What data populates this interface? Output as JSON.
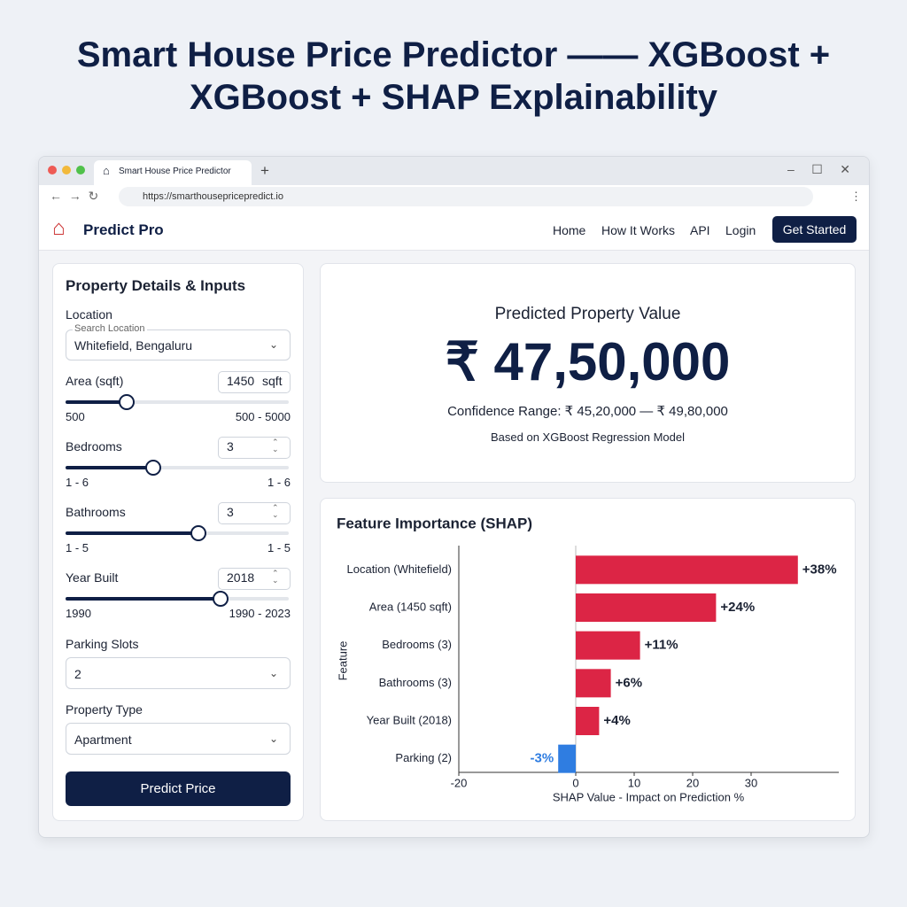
{
  "page": {
    "title_lines": [
      "Smart House Price Predictor —— XGBoost +",
      "XGBoost +  SHAP Explainability"
    ]
  },
  "browser": {
    "tab_title": "Smart House Price Predictor",
    "url": "https://smarthousepricepredict.io"
  },
  "nav": {
    "brand": "Predict Pro",
    "links": [
      "Home",
      "How It Works",
      "API",
      "Login"
    ],
    "cta": "Get Started"
  },
  "form": {
    "heading": "Property Details & Inputs",
    "location": {
      "label": "Location",
      "placeholder": "Search Location",
      "value": "Whitefield, Bengaluru"
    },
    "sliders": [
      {
        "label": "Area (sqft)",
        "value": "1450",
        "unit": "sqft",
        "min_label": "500",
        "range_label": "500 - 5000"
      },
      {
        "label": "Bedrooms",
        "value": "3",
        "min_label": "1 - 6",
        "range_label": "1 - 6"
      },
      {
        "label": "Bathrooms",
        "value": "3",
        "min_label": "1 - 5",
        "range_label": "1 - 5"
      },
      {
        "label": "Year Built",
        "value": "2018",
        "min_label": "1990",
        "range_label": "1990 - 2023"
      }
    ],
    "parking": {
      "label": "Parking Slots",
      "value": "2"
    },
    "property_type": {
      "label": "Property Type",
      "value": "Apartment"
    },
    "submit": "Predict Price"
  },
  "result": {
    "label": "Predicted Property Value",
    "price": "₹ 47,50,000",
    "confidence": "Confidence Range: ₹ 45,20,000 — ₹ 49,80,000",
    "model_note": "Based on XGBoost Regression Model"
  },
  "chart_data": {
    "type": "hbar",
    "title": "Feature Importance (SHAP)",
    "x_label": "SHAP Value - Impact on Prediction %",
    "y_label": "Feature",
    "categories": [
      "Location (Whitefield)",
      "Area (1450 sqft)",
      "Bedrooms (3)",
      "Bathrooms (3)",
      "Year Built (2018)",
      "Parking (2)"
    ],
    "values": [
      38,
      24,
      11,
      6,
      4,
      -3
    ],
    "value_labels": [
      "+38%",
      "+24%",
      "+11%",
      "+6%",
      "+4%",
      "-3%"
    ],
    "colors": [
      "#dc2545",
      "#dc2545",
      "#dc2545",
      "#dc2545",
      "#dc2545",
      "#2f7de1"
    ],
    "xlim": [
      -20,
      45
    ],
    "xticks": [
      -20,
      0,
      10,
      20,
      30
    ]
  }
}
